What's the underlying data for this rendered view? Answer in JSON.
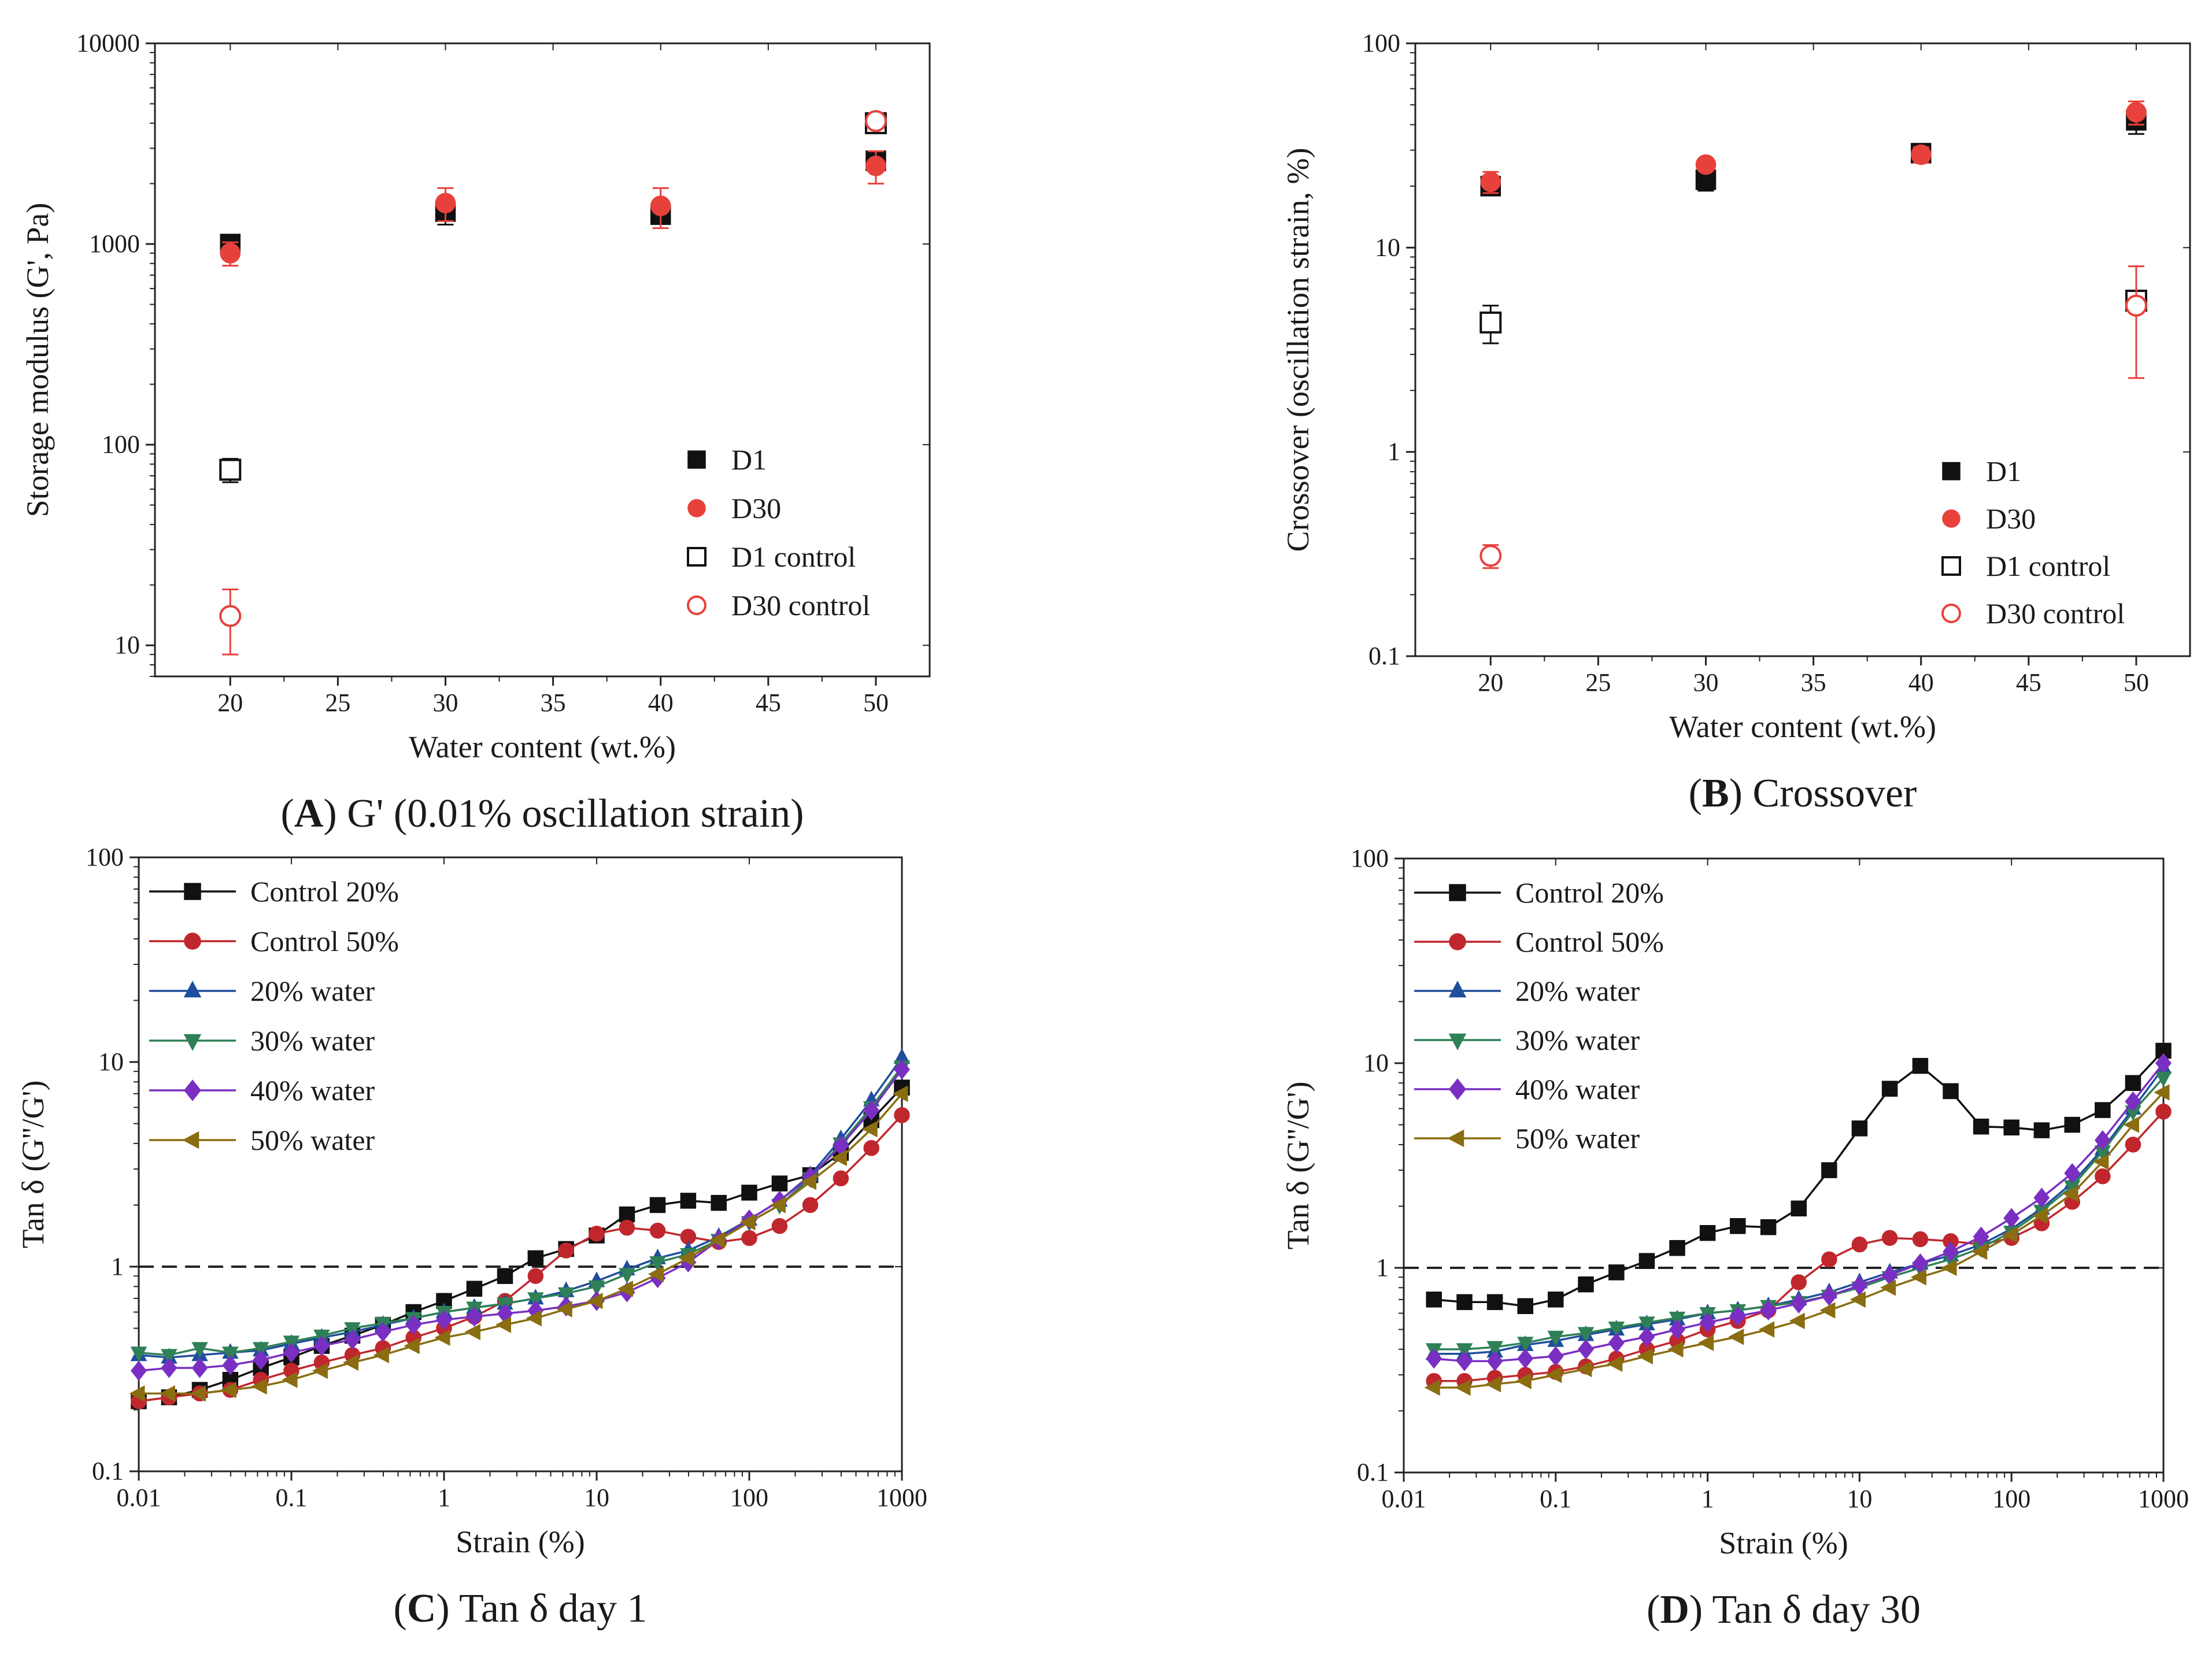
{
  "colors": {
    "black": "#111111",
    "red": "#e8413c",
    "darkred": "#c0272d",
    "blue": "#1f4e9c",
    "green": "#2f8057",
    "purple": "#7a2fc2",
    "olive": "#8a6d10"
  },
  "chart_data": [
    {
      "panel": "A",
      "type": "scatter",
      "caption_letter": "A",
      "caption_text": " G' (0.01% oscillation strain)",
      "xlabel": "Water content (wt.%)",
      "ylabel": "Storage modulus (G', Pa)",
      "xlim": [
        16.5,
        52.5
      ],
      "ylim": [
        7,
        10000
      ],
      "ylog": true,
      "xticks": [
        20,
        25,
        30,
        35,
        40,
        45,
        50
      ],
      "xtick_labels": [
        "20",
        "25",
        "30",
        "35",
        "40",
        "45",
        "50"
      ],
      "yticks": [
        10,
        100,
        1000,
        10000
      ],
      "ytick_labels": [
        "10",
        "100",
        "1000",
        "10000"
      ],
      "legend_position": "lower-right",
      "series": [
        {
          "name": "D1",
          "marker": "square",
          "filled": true,
          "color": "#111111",
          "x": [
            20,
            30,
            40,
            50
          ],
          "y": [
            1000,
            1450,
            1400,
            2600
          ],
          "err": [
            60,
            200,
            120,
            250
          ]
        },
        {
          "name": "D30",
          "marker": "circle",
          "filled": true,
          "color": "#e8413c",
          "x": [
            20,
            30,
            40,
            50
          ],
          "y": [
            900,
            1600,
            1550,
            2450
          ],
          "err": [
            120,
            300,
            350,
            450
          ]
        },
        {
          "name": "D1 control",
          "marker": "square",
          "filled": false,
          "color": "#111111",
          "x": [
            20,
            50
          ],
          "y": [
            75,
            4000
          ],
          "err": [
            10,
            300
          ]
        },
        {
          "name": "D30 control",
          "marker": "circle",
          "filled": false,
          "color": "#e8413c",
          "x": [
            20,
            50
          ],
          "y": [
            14,
            4100
          ],
          "err": [
            5,
            300
          ]
        }
      ]
    },
    {
      "panel": "B",
      "type": "scatter",
      "caption_letter": "B",
      "caption_text": " Crossover",
      "xlabel": "Water content (wt.%)",
      "ylabel": "Crossover (oscillation strain, %)",
      "xlim": [
        16.5,
        52.5
      ],
      "ylim": [
        0.1,
        100
      ],
      "ylog": true,
      "xticks": [
        20,
        25,
        30,
        35,
        40,
        45,
        50
      ],
      "xtick_labels": [
        "20",
        "25",
        "30",
        "35",
        "40",
        "45",
        "50"
      ],
      "yticks": [
        0.1,
        1,
        10,
        100
      ],
      "ytick_labels": [
        "0.1",
        "1",
        "10",
        "100"
      ],
      "legend_position": "lower-right",
      "series": [
        {
          "name": "D1",
          "marker": "square",
          "filled": true,
          "color": "#111111",
          "x": [
            20,
            30,
            40,
            50
          ],
          "y": [
            20,
            21.5,
            29,
            42
          ],
          "err": [
            1.5,
            2.5,
            2.5,
            6
          ]
        },
        {
          "name": "D30",
          "marker": "circle",
          "filled": true,
          "color": "#e8413c",
          "x": [
            20,
            30,
            40,
            50
          ],
          "y": [
            21,
            25.5,
            28.5,
            46
          ],
          "err": [
            2.5,
            1.5,
            2.5,
            6
          ]
        },
        {
          "name": "D1 control",
          "marker": "square",
          "filled": false,
          "color": "#111111",
          "x": [
            20,
            50
          ],
          "y": [
            4.3,
            5.5
          ],
          "err": [
            0.9,
            0.6
          ]
        },
        {
          "name": "D30 control",
          "marker": "circle",
          "filled": false,
          "color": "#e8413c",
          "x": [
            20,
            50
          ],
          "y": [
            0.31,
            5.2
          ],
          "err": [
            0.04,
            2.9
          ]
        }
      ]
    },
    {
      "panel": "C",
      "type": "line",
      "caption_letter": "C",
      "caption_text": " Tan δ day 1",
      "xlabel": "Strain (%)",
      "ylabel": "Tan δ (G''/G')",
      "xlim": [
        0.01,
        1000
      ],
      "ylim": [
        0.1,
        100
      ],
      "xlog": true,
      "ylog": true,
      "xticks": [
        0.01,
        0.1,
        1,
        10,
        100,
        1000
      ],
      "xtick_labels": [
        "0.01",
        "0.1",
        "1",
        "10",
        "100",
        "1000"
      ],
      "yticks": [
        0.1,
        1,
        10,
        100
      ],
      "ytick_labels": [
        "0.1",
        "1",
        "10",
        "100"
      ],
      "reference_line": 1,
      "legend_position": "top-left",
      "x": [
        0.01,
        0.0158,
        0.0251,
        0.0398,
        0.0631,
        0.1,
        0.158,
        0.251,
        0.398,
        0.631,
        1,
        1.58,
        2.51,
        3.98,
        6.31,
        10,
        15.8,
        25.1,
        39.8,
        63.1,
        100,
        158,
        251,
        398,
        631,
        1000
      ],
      "series": [
        {
          "name": "Control 20%",
          "marker": "square",
          "color": "#111111",
          "y": [
            0.22,
            0.23,
            0.25,
            0.28,
            0.32,
            0.36,
            0.41,
            0.46,
            0.52,
            0.6,
            0.68,
            0.78,
            0.9,
            1.1,
            1.22,
            1.42,
            1.8,
            2.0,
            2.1,
            2.05,
            2.3,
            2.55,
            2.8,
            3.6,
            5.2,
            7.5
          ]
        },
        {
          "name": "Control 50%",
          "marker": "circle",
          "color": "#c0272d",
          "y": [
            0.22,
            0.23,
            0.24,
            0.25,
            0.28,
            0.31,
            0.34,
            0.37,
            0.4,
            0.45,
            0.5,
            0.57,
            0.68,
            0.9,
            1.2,
            1.45,
            1.55,
            1.5,
            1.4,
            1.32,
            1.38,
            1.58,
            2.0,
            2.7,
            3.8,
            5.5
          ]
        },
        {
          "name": "20% water",
          "marker": "triangle-up",
          "color": "#1f4e9c",
          "y": [
            0.37,
            0.36,
            0.37,
            0.38,
            0.39,
            0.42,
            0.45,
            0.48,
            0.52,
            0.56,
            0.6,
            0.63,
            0.66,
            0.7,
            0.76,
            0.85,
            0.97,
            1.1,
            1.2,
            1.4,
            1.7,
            2.1,
            2.8,
            4.2,
            6.5,
            10.5
          ]
        },
        {
          "name": "30% water",
          "marker": "triangle-down",
          "color": "#2f8057",
          "y": [
            0.38,
            0.37,
            0.4,
            0.38,
            0.4,
            0.43,
            0.46,
            0.5,
            0.53,
            0.56,
            0.6,
            0.63,
            0.66,
            0.7,
            0.74,
            0.8,
            0.92,
            1.05,
            1.15,
            1.35,
            1.65,
            2.0,
            2.7,
            4.0,
            6.0,
            9.5
          ]
        },
        {
          "name": "40% water",
          "marker": "diamond",
          "color": "#7a2fc2",
          "y": [
            0.31,
            0.32,
            0.32,
            0.33,
            0.35,
            0.38,
            0.41,
            0.44,
            0.48,
            0.52,
            0.55,
            0.57,
            0.59,
            0.61,
            0.64,
            0.68,
            0.75,
            0.88,
            1.05,
            1.35,
            1.7,
            2.1,
            2.75,
            3.9,
            5.8,
            9.2
          ]
        },
        {
          "name": "50% water",
          "marker": "triangle-left",
          "color": "#8a6d10",
          "y": [
            0.24,
            0.24,
            0.24,
            0.25,
            0.26,
            0.28,
            0.31,
            0.34,
            0.37,
            0.41,
            0.45,
            0.48,
            0.52,
            0.56,
            0.62,
            0.68,
            0.78,
            0.92,
            1.1,
            1.35,
            1.65,
            2.0,
            2.6,
            3.4,
            4.7,
            7.0
          ]
        }
      ]
    },
    {
      "panel": "D",
      "type": "line",
      "caption_letter": "D",
      "caption_text": " Tan δ day 30",
      "xlabel": "Strain (%)",
      "ylabel": "Tan δ (G''/G')",
      "xlim": [
        0.01,
        1000
      ],
      "ylim": [
        0.1,
        100
      ],
      "xlog": true,
      "ylog": true,
      "xticks": [
        0.01,
        0.1,
        1,
        10,
        100,
        1000
      ],
      "xtick_labels": [
        "0.01",
        "0.1",
        "1",
        "10",
        "100",
        "1000"
      ],
      "yticks": [
        0.1,
        1,
        10,
        100
      ],
      "ytick_labels": [
        "0.1",
        "1",
        "10",
        "100"
      ],
      "reference_line": 1,
      "legend_position": "top-left",
      "x": [
        0.0158,
        0.0251,
        0.0398,
        0.0631,
        0.1,
        0.158,
        0.251,
        0.398,
        0.631,
        1,
        1.58,
        2.51,
        3.98,
        6.31,
        10,
        15.8,
        25.1,
        39.8,
        63.1,
        100,
        158,
        251,
        398,
        631,
        1000
      ],
      "series": [
        {
          "name": "Control 20%",
          "marker": "square",
          "color": "#111111",
          "y": [
            0.7,
            0.68,
            0.68,
            0.65,
            0.7,
            0.83,
            0.95,
            1.08,
            1.25,
            1.48,
            1.6,
            1.58,
            1.95,
            3.0,
            4.8,
            7.5,
            9.7,
            7.3,
            4.9,
            4.85,
            4.7,
            5.0,
            5.9,
            8.0,
            11.5
          ]
        },
        {
          "name": "Control 50%",
          "marker": "circle",
          "color": "#c0272d",
          "y": [
            0.28,
            0.28,
            0.29,
            0.3,
            0.31,
            0.33,
            0.36,
            0.4,
            0.44,
            0.5,
            0.55,
            0.62,
            0.85,
            1.1,
            1.3,
            1.4,
            1.38,
            1.35,
            1.3,
            1.4,
            1.65,
            2.1,
            2.8,
            4.0,
            5.8
          ]
        },
        {
          "name": "20% water",
          "marker": "triangle-up",
          "color": "#1f4e9c",
          "y": [
            0.38,
            0.38,
            0.39,
            0.42,
            0.44,
            0.47,
            0.5,
            0.53,
            0.56,
            0.6,
            0.62,
            0.65,
            0.7,
            0.76,
            0.85,
            0.95,
            1.05,
            1.15,
            1.3,
            1.55,
            1.95,
            2.6,
            3.8,
            6.0,
            9.5
          ]
        },
        {
          "name": "30% water",
          "marker": "triangle-down",
          "color": "#2f8057",
          "y": [
            0.4,
            0.4,
            0.41,
            0.43,
            0.46,
            0.48,
            0.51,
            0.54,
            0.57,
            0.6,
            0.62,
            0.65,
            0.68,
            0.73,
            0.8,
            0.9,
            1.0,
            1.1,
            1.25,
            1.5,
            1.9,
            2.5,
            3.7,
            5.8,
            8.5
          ]
        },
        {
          "name": "40% water",
          "marker": "diamond",
          "color": "#7a2fc2",
          "y": [
            0.36,
            0.35,
            0.35,
            0.36,
            0.37,
            0.4,
            0.43,
            0.46,
            0.5,
            0.54,
            0.58,
            0.62,
            0.67,
            0.73,
            0.82,
            0.92,
            1.05,
            1.2,
            1.42,
            1.75,
            2.2,
            2.9,
            4.2,
            6.5,
            10.0
          ]
        },
        {
          "name": "50% water",
          "marker": "triangle-left",
          "color": "#8a6d10",
          "y": [
            0.26,
            0.26,
            0.27,
            0.28,
            0.3,
            0.32,
            0.34,
            0.37,
            0.4,
            0.43,
            0.46,
            0.5,
            0.55,
            0.62,
            0.7,
            0.8,
            0.9,
            1.0,
            1.2,
            1.45,
            1.8,
            2.3,
            3.3,
            5.0,
            7.2
          ]
        }
      ]
    }
  ]
}
